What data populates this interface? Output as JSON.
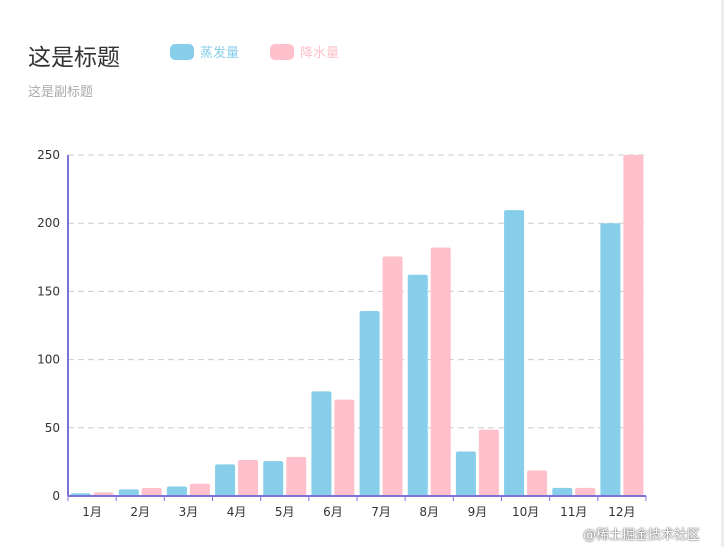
{
  "title": "这是标题",
  "subtitle": "这是副标题",
  "watermark": "@稀土掘金技术社区",
  "colors": {
    "evaporation": "#87ceeb",
    "precipitation": "#ffc0cb",
    "axis": "#7b73d9",
    "grid": "#cccccc"
  },
  "chart_data": {
    "type": "bar",
    "title": "这是标题",
    "subtitle": "这是副标题",
    "categories": [
      "1月",
      "2月",
      "3月",
      "4月",
      "5月",
      "6月",
      "7月",
      "8月",
      "9月",
      "10月",
      "11月",
      "12月"
    ],
    "series": [
      {
        "name": "蒸发量",
        "values": [
          2.0,
          4.9,
          7.0,
          23.2,
          25.6,
          76.7,
          135.6,
          162.2,
          32.6,
          209.6,
          6.0,
          200
        ]
      },
      {
        "name": "降水量",
        "values": [
          2.6,
          5.9,
          9.0,
          26.4,
          28.7,
          70.7,
          175.6,
          182.2,
          48.7,
          18.8,
          6.0,
          250
        ]
      }
    ],
    "yticks": [
      0,
      50,
      100,
      150,
      200,
      250
    ],
    "ylim": [
      0,
      250
    ],
    "grid": true,
    "legend_position": "top-left"
  }
}
